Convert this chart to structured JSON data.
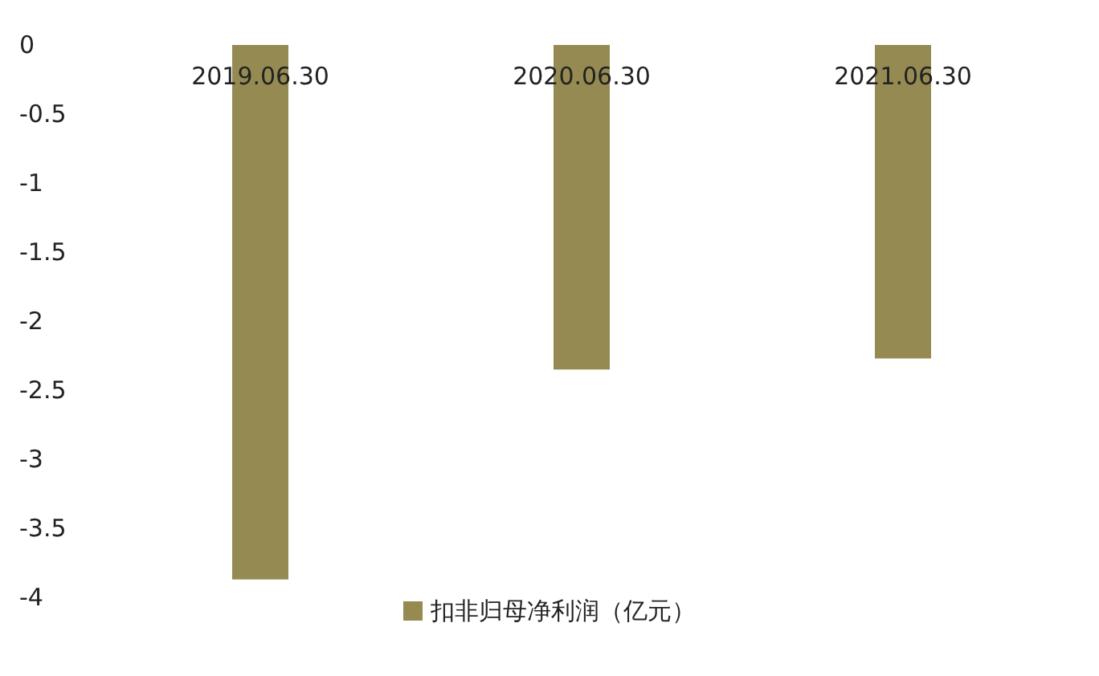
{
  "chart_data": {
    "type": "bar",
    "categories": [
      "2019.06.30",
      "2020.06.30",
      "2021.06.30"
    ],
    "series": [
      {
        "name": "扣非归母净利润（亿元）",
        "color": "#958b52",
        "values": [
          -3.87,
          -2.35,
          -2.27
        ]
      }
    ],
    "ylim": [
      -4,
      0
    ],
    "yticks": [
      -4,
      -3.5,
      -3,
      -2.5,
      -2,
      -1.5,
      -1,
      -0.5,
      0
    ],
    "grid": false,
    "legend": "bottom"
  }
}
